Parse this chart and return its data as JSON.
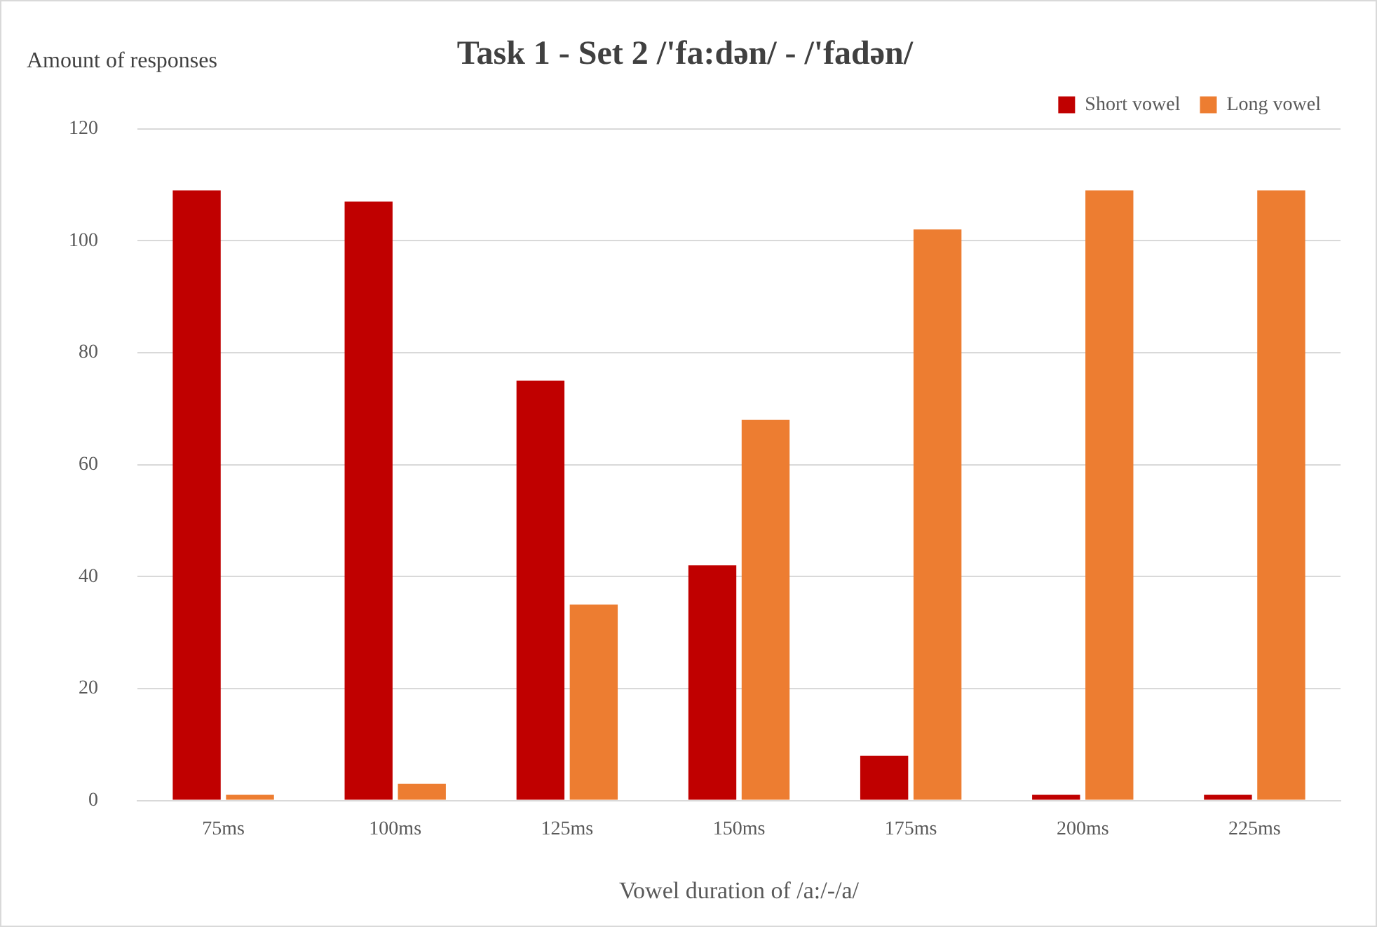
{
  "chart_data": {
    "type": "bar",
    "title": "Task 1 - Set 2 /'fa:dən/ - /'fadən/",
    "xlabel": "Vowel duration of /a:/-/a/",
    "ylabel": "Amount of responses",
    "categories": [
      "75ms",
      "100ms",
      "125ms",
      "150ms",
      "175ms",
      "200ms",
      "225ms"
    ],
    "series": [
      {
        "name": "Short vowel",
        "color": "#c00000",
        "values": [
          109,
          107,
          75,
          42,
          8,
          1,
          1
        ]
      },
      {
        "name": "Long vowel",
        "color": "#ed7d31",
        "values": [
          1,
          3,
          35,
          68,
          102,
          109,
          109
        ]
      }
    ],
    "ylim": [
      0,
      120
    ],
    "yticks": [
      0,
      20,
      40,
      60,
      80,
      100,
      120
    ],
    "grid": "y",
    "legend": "top right"
  }
}
